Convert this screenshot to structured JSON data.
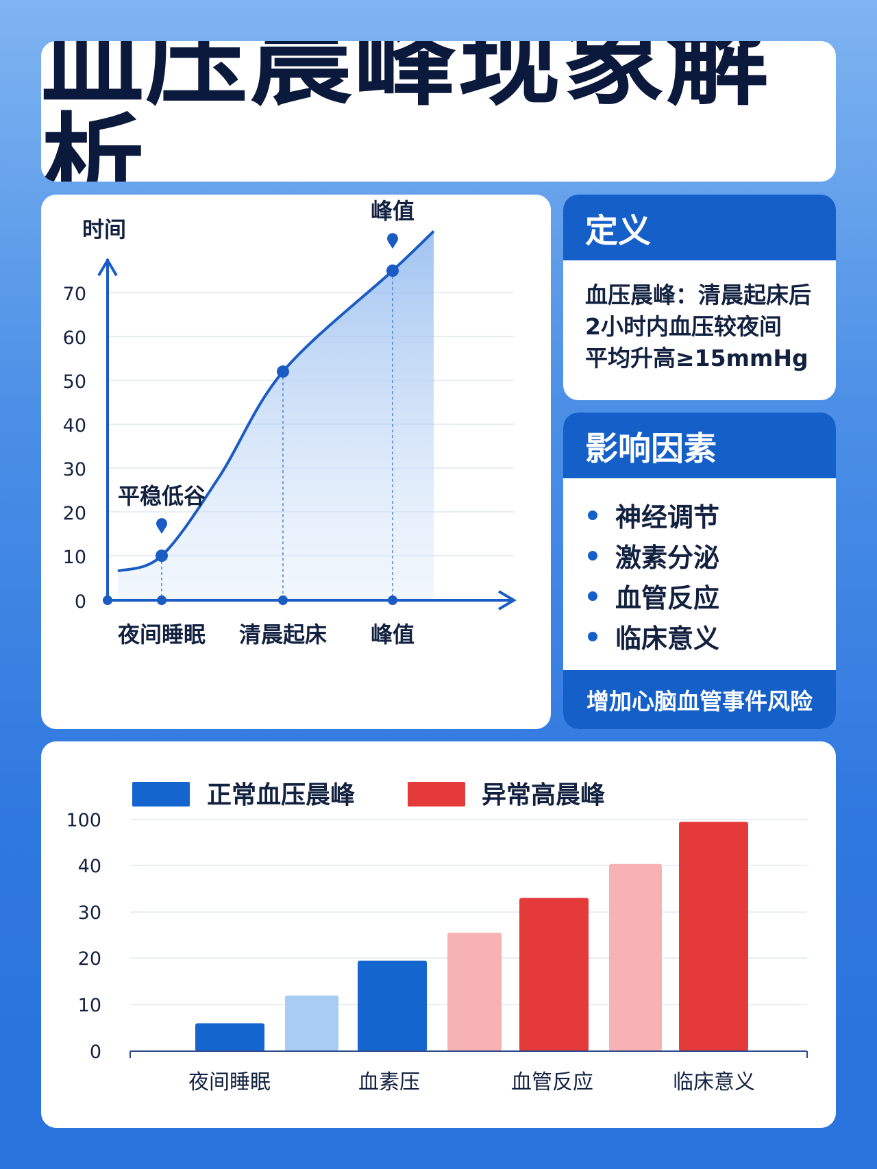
{
  "title": "血压晨峰现象解析",
  "definition": {
    "header": "定义",
    "lines": [
      "血压晨峰：清晨起床后",
      "2小时内血压较夜间",
      "平均升高≥15mmHg"
    ]
  },
  "factors": {
    "header": "影响因素",
    "items": [
      "神经调节",
      "激素分泌",
      "血管反应",
      "临床意义"
    ],
    "footer": "增加心脑血管事件风险"
  },
  "chart_data": [
    {
      "type": "line",
      "ylabel": "时间",
      "yticks": [
        0,
        10,
        20,
        30,
        40,
        50,
        60,
        70
      ],
      "ylim": [
        0,
        80
      ],
      "x": [
        0,
        1,
        2,
        3,
        4,
        5
      ],
      "y": [
        6.5,
        10,
        28,
        52,
        75,
        84
      ],
      "grid": true,
      "markers": [
        {
          "x": 1,
          "y": 10,
          "label": "平稳低谷",
          "category": "夜间睡眠"
        },
        {
          "x": 3,
          "y": 52,
          "label": "",
          "category": "清晨起床"
        },
        {
          "x": 4,
          "y": 75,
          "label": "峰值",
          "category": "峰值"
        }
      ],
      "xticks": [
        {
          "x": 1,
          "label": "夜间睡眠"
        },
        {
          "x": 3,
          "label": "清晨起床"
        },
        {
          "x": 4,
          "label": "峰值"
        }
      ],
      "colors": {
        "line": "#1a5bc4",
        "fill": "#b9d3f5"
      }
    },
    {
      "type": "bar",
      "legend": [
        {
          "name": "正常血压晨峰",
          "color": "#1565cf"
        },
        {
          "name": "异常高晨峰",
          "color": "#e53a3a"
        }
      ],
      "legend_position": "top-left",
      "yticks": [
        "0",
        "10",
        "20",
        "30",
        "40",
        "100"
      ],
      "categories": [
        "夜间睡眠",
        "血素压",
        "血管反应",
        "临床意义"
      ],
      "grid": true,
      "bars": [
        {
          "category": "夜间睡眠",
          "value": 6,
          "color": "#1565cf"
        },
        {
          "category": "夜间睡眠",
          "value": 12,
          "color": "#a9ccf4"
        },
        {
          "category": "血素压",
          "value": 19.5,
          "color": "#1565cf"
        },
        {
          "category": "血素压",
          "value": 25.5,
          "color": "#f7b3b3"
        },
        {
          "category": "血管反应",
          "value": 33,
          "color": "#e53a3a"
        },
        {
          "category": "临床意义",
          "value": 42,
          "color": "#f7b3b3"
        },
        {
          "category": "临床意义",
          "value": 97,
          "color": "#e53a3a"
        }
      ]
    }
  ]
}
